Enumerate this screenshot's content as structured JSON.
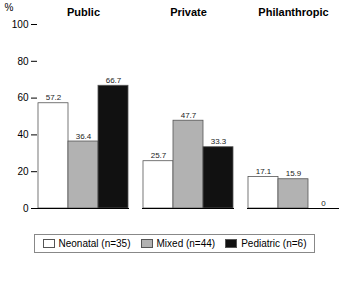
{
  "chart_data": {
    "type": "bar",
    "ylabel": "%",
    "categories": [
      "Public",
      "Private",
      "Philanthropic"
    ],
    "series": [
      {
        "name": "Neonatal (n=35)",
        "color": "#ffffff",
        "values": [
          57.2,
          25.7,
          17.1
        ]
      },
      {
        "name": "Mixed (n=44)",
        "color": "#b2b2b2",
        "values": [
          36.4,
          47.7,
          15.9
        ]
      },
      {
        "name": "Pediatric (n=6)",
        "color": "#111111",
        "values": [
          66.7,
          33.3,
          0
        ]
      }
    ],
    "ylim": [
      0,
      100
    ],
    "yticks": [
      0,
      20,
      40,
      60,
      80,
      100
    ],
    "grid": false,
    "legend": "bottom",
    "data_labels": true
  }
}
